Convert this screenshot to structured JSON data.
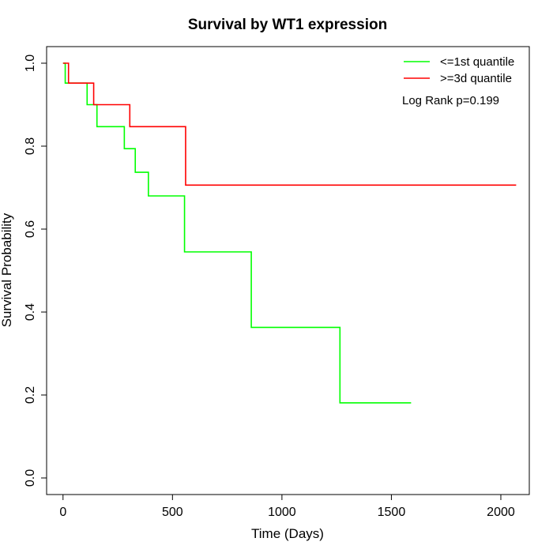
{
  "chart_data": {
    "type": "line",
    "step": true,
    "title": "Survival by WT1 expression",
    "xlabel": "Time (Days)",
    "ylabel": "Survival Probability",
    "xlim": [
      -75,
      2130
    ],
    "ylim": [
      -0.04,
      1.04
    ],
    "xticks": [
      0,
      500,
      1000,
      1500,
      2000
    ],
    "xtick_labels": [
      "0",
      "500",
      "1000",
      "1500",
      "2000"
    ],
    "yticks": [
      0.0,
      0.2,
      0.4,
      0.6,
      0.8,
      1.0
    ],
    "ytick_labels": [
      "0.0",
      "0.2",
      "0.4",
      "0.6",
      "0.8",
      "1.0"
    ],
    "grid": false,
    "legend_position": "top-right",
    "annotation": "Log Rank p=0.199",
    "series": [
      {
        "name": "<=1st quantile",
        "color": "#00ff00",
        "x": [
          0,
          10,
          110,
          155,
          280,
          330,
          390,
          555,
          860,
          1265,
          1590
        ],
        "y": [
          1.0,
          0.952,
          0.9,
          0.847,
          0.794,
          0.737,
          0.68,
          0.545,
          0.363,
          0.181,
          0.181
        ]
      },
      {
        "name": ">=3d quantile",
        "color": "#ff0000",
        "x": [
          0,
          25,
          140,
          305,
          560,
          2070
        ],
        "y": [
          1.0,
          0.952,
          0.9,
          0.847,
          0.706,
          0.706
        ]
      }
    ]
  }
}
